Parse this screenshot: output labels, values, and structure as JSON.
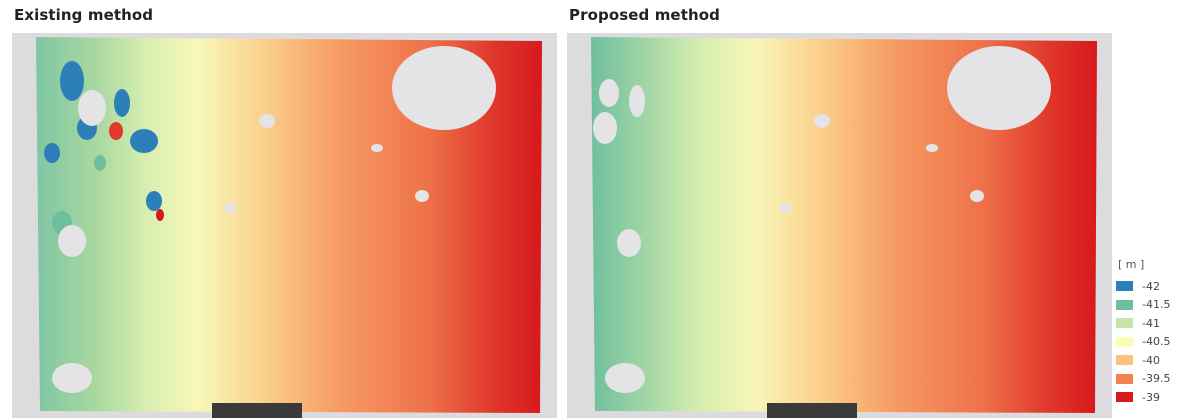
{
  "panels": [
    {
      "title": "Existing method"
    },
    {
      "title": "Proposed method"
    }
  ],
  "legend": {
    "unit": "[ m ]",
    "items": [
      {
        "label": "-42",
        "color": "#2c7fb8"
      },
      {
        "label": "-41.5",
        "color": "#6fbf9e"
      },
      {
        "label": "-41",
        "color": "#c5e6a5"
      },
      {
        "label": "-40.5",
        "color": "#fafcb8"
      },
      {
        "label": "-40",
        "color": "#fcc27b"
      },
      {
        "label": "-39.5",
        "color": "#f4804f"
      },
      {
        "label": "-39",
        "color": "#d7191c"
      }
    ]
  }
}
